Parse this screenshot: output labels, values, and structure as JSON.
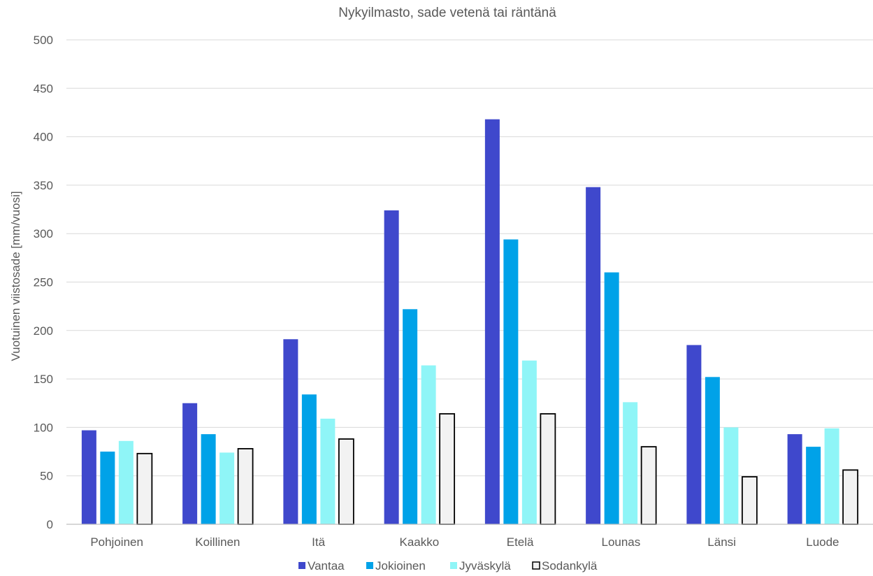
{
  "chart_data": {
    "type": "bar",
    "title": "Nykyilmasto, sade vetenä tai räntänä",
    "xlabel": "",
    "ylabel": "Vuotuinen viistosade [mm/vuosi]",
    "ylim": [
      0,
      500
    ],
    "yticks": [
      0,
      50,
      100,
      150,
      200,
      250,
      300,
      350,
      400,
      450,
      500
    ],
    "grid": true,
    "legend_position": "bottom",
    "categories": [
      "Pohjoinen",
      "Koillinen",
      "Itä",
      "Kaakko",
      "Etelä",
      "Lounas",
      "Länsi",
      "Luode"
    ],
    "series": [
      {
        "name": "Vantaa",
        "color": "#3f48cc",
        "values": [
          97,
          125,
          191,
          324,
          418,
          348,
          185,
          93
        ]
      },
      {
        "name": "Jokioinen",
        "color": "#00a2e8",
        "values": [
          75,
          93,
          134,
          222,
          294,
          260,
          152,
          80
        ]
      },
      {
        "name": "Jyväskylä",
        "color": "#8ff5f7",
        "values": [
          86,
          74,
          109,
          164,
          169,
          126,
          100,
          99
        ]
      },
      {
        "name": "Sodankylä",
        "color": "#f2f2f2",
        "stroke": "#000000",
        "values": [
          73,
          78,
          88,
          114,
          114,
          80,
          49,
          56
        ]
      }
    ]
  }
}
